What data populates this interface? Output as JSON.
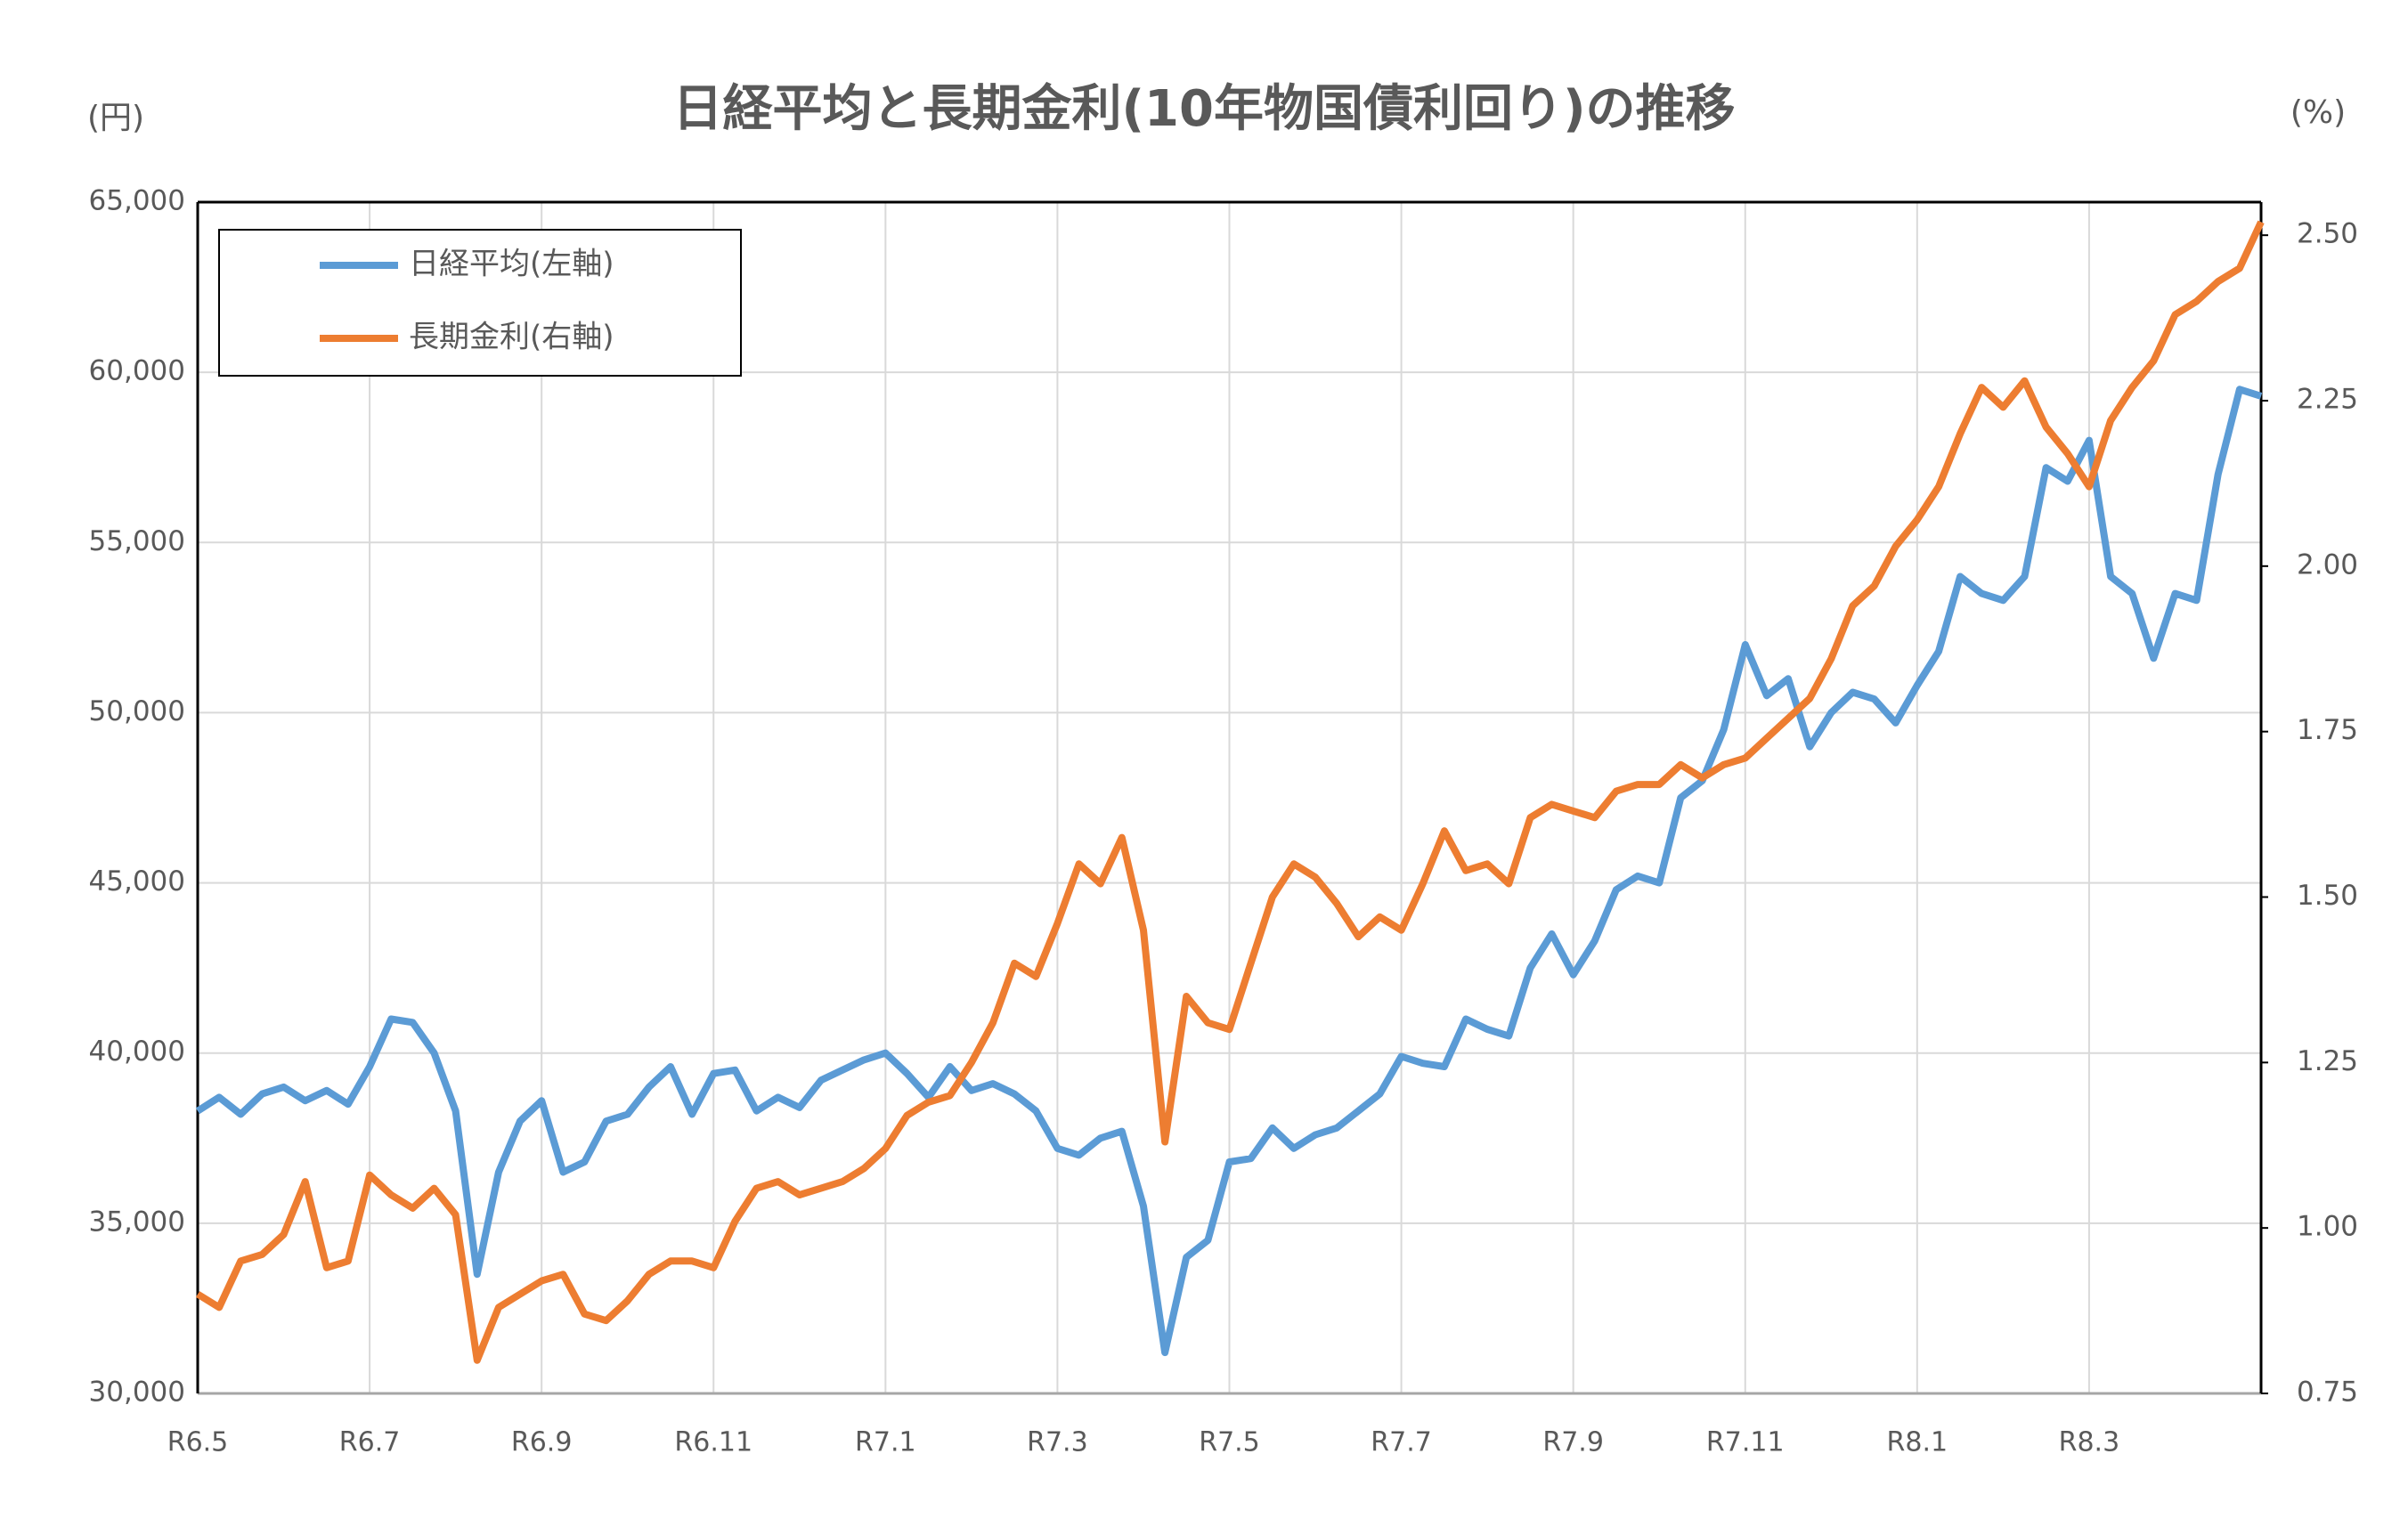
{
  "chart_data": {
    "type": "line",
    "title": "日経平均と長期金利(10年物国債利回り)の推移",
    "y_label": "(円)",
    "y2_label": "(%)",
    "categories": [
      "R6.5",
      null,
      null,
      null,
      null,
      null,
      null,
      null,
      "R6.7",
      null,
      null,
      null,
      null,
      null,
      null,
      null,
      "R6.9",
      null,
      null,
      null,
      null,
      null,
      null,
      null,
      "R6.11",
      null,
      null,
      null,
      null,
      null,
      null,
      null,
      "R7.1",
      null,
      null,
      null,
      null,
      null,
      null,
      null,
      "R7.3",
      null,
      null,
      null,
      null,
      null,
      null,
      null,
      "R7.5",
      null,
      null,
      null,
      null,
      null,
      null,
      null,
      "R7.7",
      null,
      null,
      null,
      null,
      null,
      null,
      null,
      "R7.9",
      null,
      null,
      null,
      null,
      null,
      null,
      null,
      "R7.11",
      null,
      null,
      null,
      null,
      null,
      null,
      null,
      "R8.1",
      null,
      null,
      null,
      null,
      null,
      null,
      null,
      "R8.3",
      null,
      null,
      null,
      null,
      null,
      null,
      null,
      null
    ],
    "series": [
      {
        "name": "日経平均(左軸)",
        "color": "#5b9bd5",
        "axis": "y",
        "values": [
          38300,
          38700,
          38200,
          38800,
          39000,
          38600,
          38900,
          38500,
          39600,
          41000,
          40900,
          40000,
          38300,
          33500,
          36500,
          38000,
          38600,
          36500,
          36800,
          38000,
          38200,
          39000,
          39600,
          38200,
          39400,
          39500,
          38300,
          38700,
          38400,
          39200,
          39500,
          39800,
          40000,
          39400,
          38700,
          39600,
          38900,
          39100,
          38800,
          38300,
          37200,
          37000,
          37500,
          37700,
          35500,
          31200,
          34000,
          34500,
          36800,
          36900,
          37800,
          37200,
          37600,
          37800,
          38300,
          38800,
          39900,
          39700,
          39600,
          41000,
          40700,
          40500,
          42500,
          43500,
          42300,
          43300,
          44800,
          45200,
          45000,
          47500,
          48000,
          49500,
          52000,
          50500,
          51000,
          49000,
          50000,
          50600,
          50400,
          49700,
          50800,
          51800,
          54000,
          53500,
          53300,
          54000,
          57200,
          56800,
          58000,
          54000,
          53500,
          51600,
          53500,
          53300,
          57000,
          59500,
          59300
        ]
      },
      {
        "name": "長期金利(右軸)",
        "color": "#ed7d31",
        "axis": "y2",
        "values": [
          0.9,
          0.88,
          0.95,
          0.96,
          0.99,
          1.07,
          0.94,
          0.95,
          1.08,
          1.05,
          1.03,
          1.06,
          1.02,
          0.8,
          0.88,
          0.9,
          0.92,
          0.93,
          0.87,
          0.86,
          0.89,
          0.93,
          0.95,
          0.95,
          0.94,
          1.01,
          1.06,
          1.07,
          1.05,
          1.06,
          1.07,
          1.09,
          1.12,
          1.17,
          1.19,
          1.2,
          1.25,
          1.31,
          1.4,
          1.38,
          1.46,
          1.55,
          1.52,
          1.59,
          1.45,
          1.13,
          1.35,
          1.31,
          1.3,
          1.4,
          1.5,
          1.55,
          1.53,
          1.49,
          1.44,
          1.47,
          1.45,
          1.52,
          1.6,
          1.54,
          1.55,
          1.52,
          1.62,
          1.64,
          1.63,
          1.62,
          1.66,
          1.67,
          1.67,
          1.7,
          1.68,
          1.7,
          1.71,
          1.74,
          1.77,
          1.8,
          1.86,
          1.94,
          1.97,
          2.03,
          2.07,
          2.12,
          2.2,
          2.27,
          2.24,
          2.28,
          2.21,
          2.17,
          2.12,
          2.22,
          2.27,
          2.31,
          2.38,
          2.4,
          2.43,
          2.45,
          2.52
        ]
      }
    ],
    "ylim": [
      30000,
      65000
    ],
    "yticks": [
      {
        "value": 30000,
        "label": "30,000"
      },
      {
        "value": 35000,
        "label": "35,000"
      },
      {
        "value": 40000,
        "label": "40,000"
      },
      {
        "value": 45000,
        "label": "45,000"
      },
      {
        "value": 50000,
        "label": "50,000"
      },
      {
        "value": 55000,
        "label": "55,000"
      },
      {
        "value": 60000,
        "label": "60,000"
      },
      {
        "value": 65000,
        "label": "65,000"
      }
    ],
    "y2lim": [
      0.75,
      2.55
    ],
    "y2ticks": [
      0.75,
      {
        "value": 1,
        "label": "1.00"
      },
      1.25,
      {
        "value": 1.5,
        "label": "1.50"
      },
      1.75,
      {
        "value": 2,
        "label": "2.00"
      },
      2.25,
      {
        "value": 2.5,
        "label": "2.50"
      }
    ],
    "grid": true,
    "legend": "upper left"
  }
}
